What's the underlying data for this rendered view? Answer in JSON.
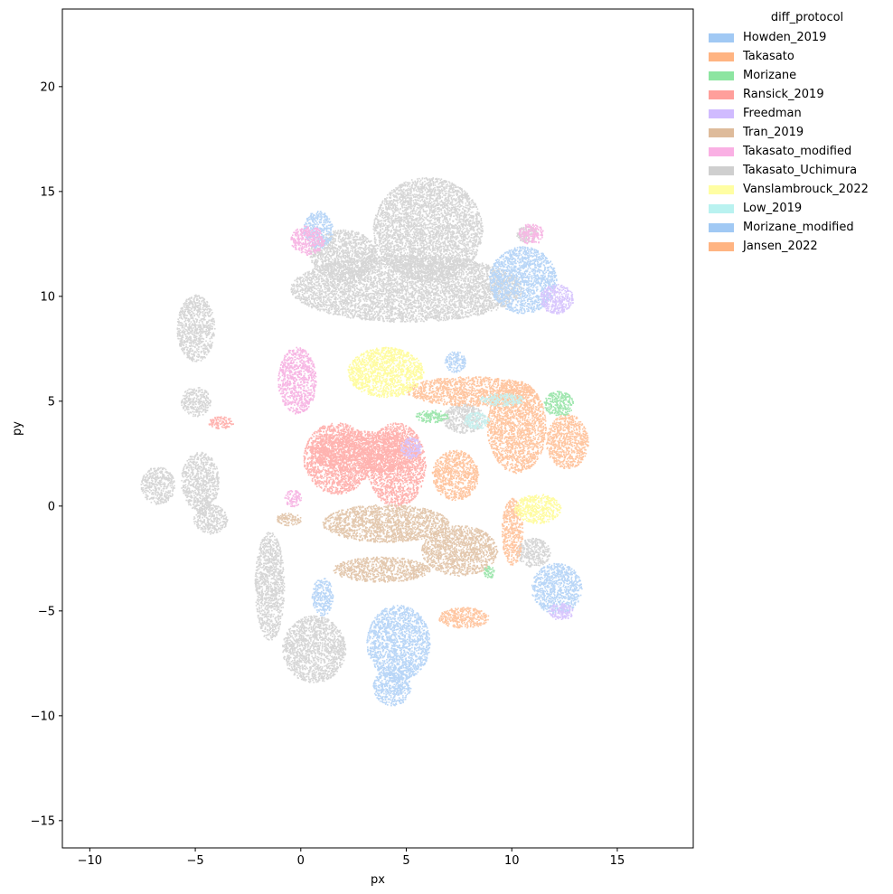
{
  "chart_data": {
    "type": "scatter",
    "title": "",
    "xlabel": "px",
    "ylabel": "py",
    "xlim": [
      -11.3,
      18.6
    ],
    "ylim": [
      -16.3,
      23.7
    ],
    "xticks": [
      -10,
      -5,
      0,
      5,
      10,
      15
    ],
    "yticks": [
      -15,
      -10,
      -5,
      0,
      5,
      10,
      15,
      20
    ],
    "xtick_labels": [
      "−10",
      "−5",
      "0",
      "5",
      "10",
      "15"
    ],
    "ytick_labels": [
      "−15",
      "−10",
      "−5",
      "0",
      "5",
      "10",
      "15",
      "20"
    ],
    "grid": false,
    "legend": {
      "title": "diff_protocol",
      "placement": "outside upper right",
      "entries": [
        {
          "name": "Howden_2019",
          "color": "#a1c9f4"
        },
        {
          "name": "Takasato",
          "color": "#ffb482"
        },
        {
          "name": "Morizane",
          "color": "#8de5a1"
        },
        {
          "name": "Ransick_2019",
          "color": "#ff9f9b"
        },
        {
          "name": "Freedman",
          "color": "#d0bbff"
        },
        {
          "name": "Tran_2019",
          "color": "#debb9b"
        },
        {
          "name": "Takasato_modified",
          "color": "#fab0e4"
        },
        {
          "name": "Takasato_Uchimura",
          "color": "#cfcfcf"
        },
        {
          "name": "Vanslambrouck_2022",
          "color": "#fffea3"
        },
        {
          "name": "Low_2019",
          "color": "#b9f2f0"
        },
        {
          "name": "Morizane_modified",
          "color": "#a1c9f4"
        },
        {
          "name": "Jansen_2022",
          "color": "#ffb482"
        }
      ]
    },
    "series": [
      {
        "name": "Takasato_Uchimura",
        "color": "#d6d6d6",
        "clusters": [
          {
            "cx": 5.0,
            "cy": 10.4,
            "rx": 5.5,
            "ry": 1.6
          },
          {
            "cx": 6.0,
            "cy": 13.2,
            "rx": 2.6,
            "ry": 2.5
          },
          {
            "cx": 2.0,
            "cy": 12.0,
            "rx": 1.6,
            "ry": 1.2
          },
          {
            "cx": -5.0,
            "cy": 8.5,
            "rx": 0.9,
            "ry": 1.6
          },
          {
            "cx": -5.0,
            "cy": 5.0,
            "rx": 0.7,
            "ry": 0.7
          },
          {
            "cx": -4.8,
            "cy": 1.2,
            "rx": 0.9,
            "ry": 1.4
          },
          {
            "cx": -6.8,
            "cy": 1.0,
            "rx": 0.8,
            "ry": 0.9
          },
          {
            "cx": -4.3,
            "cy": -0.6,
            "rx": 0.8,
            "ry": 0.7
          },
          {
            "cx": -1.5,
            "cy": -3.8,
            "rx": 0.7,
            "ry": 2.6
          },
          {
            "cx": 0.6,
            "cy": -6.8,
            "rx": 1.5,
            "ry": 1.6
          },
          {
            "cx": 7.7,
            "cy": 4.2,
            "rx": 1.0,
            "ry": 0.7
          },
          {
            "cx": 11.0,
            "cy": -2.2,
            "rx": 0.8,
            "ry": 0.7
          },
          {
            "cx": 10.7,
            "cy": 13.0,
            "rx": 0.5,
            "ry": 0.4
          }
        ]
      },
      {
        "name": "Ransick_2019",
        "color": "#ffb3b0",
        "clusters": [
          {
            "cx": 1.7,
            "cy": 2.3,
            "rx": 1.6,
            "ry": 1.7
          },
          {
            "cx": 4.5,
            "cy": 2.0,
            "rx": 1.4,
            "ry": 2.0
          },
          {
            "cx": 3.0,
            "cy": 2.6,
            "rx": 2.6,
            "ry": 1.0
          },
          {
            "cx": -3.8,
            "cy": 4.0,
            "rx": 0.6,
            "ry": 0.3
          }
        ]
      },
      {
        "name": "Takasato",
        "color": "#ffc6a1",
        "clusters": [
          {
            "cx": 8.0,
            "cy": 5.5,
            "rx": 3.0,
            "ry": 0.7
          },
          {
            "cx": 10.2,
            "cy": 3.8,
            "rx": 1.4,
            "ry": 2.2
          },
          {
            "cx": 12.6,
            "cy": 3.1,
            "rx": 1.0,
            "ry": 1.3
          },
          {
            "cx": 7.3,
            "cy": 1.5,
            "rx": 1.1,
            "ry": 1.2
          }
        ]
      },
      {
        "name": "Jansen_2022",
        "color": "#ffc6a1",
        "clusters": [
          {
            "cx": 10.0,
            "cy": -1.2,
            "rx": 0.5,
            "ry": 1.6
          },
          {
            "cx": 7.7,
            "cy": -5.3,
            "rx": 1.2,
            "ry": 0.5
          }
        ]
      },
      {
        "name": "Tran_2019",
        "color": "#e3c8ae",
        "clusters": [
          {
            "cx": 4.0,
            "cy": -0.8,
            "rx": 3.0,
            "ry": 0.9
          },
          {
            "cx": 7.5,
            "cy": -2.1,
            "rx": 1.8,
            "ry": 1.2
          },
          {
            "cx": 3.8,
            "cy": -3.0,
            "rx": 2.3,
            "ry": 0.6
          },
          {
            "cx": -0.6,
            "cy": -0.6,
            "rx": 0.6,
            "ry": 0.3
          }
        ]
      },
      {
        "name": "Vanslambrouck_2022",
        "color": "#fffca0",
        "clusters": [
          {
            "cx": 4.0,
            "cy": 6.4,
            "rx": 1.8,
            "ry": 1.2
          },
          {
            "cx": 11.2,
            "cy": -0.1,
            "rx": 1.1,
            "ry": 0.7
          }
        ]
      },
      {
        "name": "Howden_2019",
        "color": "#b9d6f7",
        "clusters": [
          {
            "cx": 4.6,
            "cy": -6.5,
            "rx": 1.5,
            "ry": 1.8
          },
          {
            "cx": 4.3,
            "cy": -8.6,
            "rx": 0.9,
            "ry": 0.9
          },
          {
            "cx": 12.1,
            "cy": -3.9,
            "rx": 1.2,
            "ry": 1.2
          },
          {
            "cx": 7.3,
            "cy": 6.9,
            "rx": 0.5,
            "ry": 0.5
          }
        ]
      },
      {
        "name": "Morizane_modified",
        "color": "#b9d6f7",
        "clusters": [
          {
            "cx": 10.5,
            "cy": 10.8,
            "rx": 1.6,
            "ry": 1.6
          },
          {
            "cx": 0.8,
            "cy": 13.2,
            "rx": 0.7,
            "ry": 0.9
          },
          {
            "cx": 1.0,
            "cy": -4.3,
            "rx": 0.5,
            "ry": 0.9
          }
        ]
      },
      {
        "name": "Freedman",
        "color": "#d8c6fd",
        "clusters": [
          {
            "cx": 12.1,
            "cy": 9.9,
            "rx": 0.8,
            "ry": 0.7
          },
          {
            "cx": 12.3,
            "cy": -5.0,
            "rx": 0.6,
            "ry": 0.4
          },
          {
            "cx": 5.2,
            "cy": 2.8,
            "rx": 0.5,
            "ry": 0.5
          }
        ]
      },
      {
        "name": "Takasato_modified",
        "color": "#f7b7e4",
        "clusters": [
          {
            "cx": -0.2,
            "cy": 6.0,
            "rx": 0.9,
            "ry": 1.6
          },
          {
            "cx": 0.3,
            "cy": 12.7,
            "rx": 0.8,
            "ry": 0.7
          },
          {
            "cx": 10.9,
            "cy": 13.0,
            "rx": 0.6,
            "ry": 0.5
          },
          {
            "cx": -0.4,
            "cy": 0.4,
            "rx": 0.4,
            "ry": 0.4
          }
        ]
      },
      {
        "name": "Morizane",
        "color": "#9fe6ae",
        "clusters": [
          {
            "cx": 12.2,
            "cy": 4.9,
            "rx": 0.7,
            "ry": 0.6
          },
          {
            "cx": 6.2,
            "cy": 4.3,
            "rx": 0.8,
            "ry": 0.3
          },
          {
            "cx": 8.9,
            "cy": -3.1,
            "rx": 0.3,
            "ry": 0.3
          }
        ]
      },
      {
        "name": "Low_2019",
        "color": "#c8f0ee",
        "clusters": [
          {
            "cx": 9.5,
            "cy": 5.1,
            "rx": 1.1,
            "ry": 0.3
          },
          {
            "cx": 8.3,
            "cy": 4.1,
            "rx": 0.6,
            "ry": 0.4
          }
        ]
      }
    ]
  }
}
